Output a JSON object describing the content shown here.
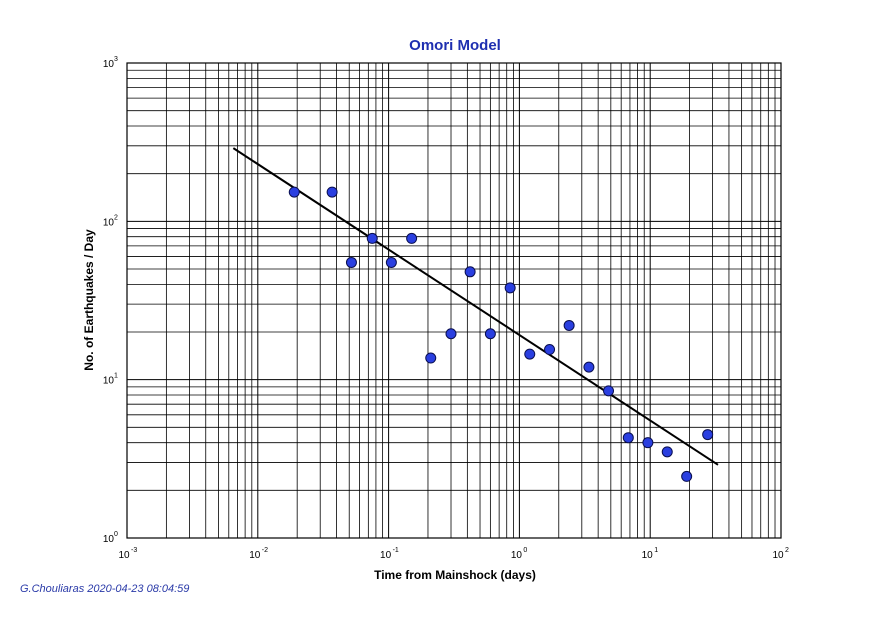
{
  "chart_data": {
    "type": "scatter",
    "title": "Omori Model",
    "xlabel": "Time from Mainshock (days)",
    "ylabel": "No. of Earthquakes / Day",
    "xscale": "log",
    "yscale": "log",
    "xlim": [
      0.001,
      100
    ],
    "ylim": [
      1,
      1000
    ],
    "x_ticks": [
      {
        "base": "10",
        "exp": "-3",
        "value": 0.001
      },
      {
        "base": "10",
        "exp": "-2",
        "value": 0.01
      },
      {
        "base": "10",
        "exp": "-1",
        "value": 0.1
      },
      {
        "base": "10",
        "exp": "0",
        "value": 1
      },
      {
        "base": "10",
        "exp": "1",
        "value": 10
      },
      {
        "base": "10",
        "exp": "2",
        "value": 100
      }
    ],
    "y_ticks": [
      {
        "base": "10",
        "exp": "0",
        "value": 1
      },
      {
        "base": "10",
        "exp": "1",
        "value": 10
      },
      {
        "base": "10",
        "exp": "2",
        "value": 100
      },
      {
        "base": "10",
        "exp": "3",
        "value": 1000
      }
    ],
    "grid": true,
    "points": {
      "x": [
        0.019,
        0.037,
        0.052,
        0.075,
        0.105,
        0.15,
        0.21,
        0.3,
        0.42,
        0.6,
        0.85,
        1.2,
        1.7,
        2.4,
        3.4,
        4.8,
        6.8,
        9.6,
        13.5,
        19,
        27.5
      ],
      "y": [
        153,
        153,
        55,
        78,
        55,
        78,
        13.7,
        19.5,
        48,
        19.5,
        38,
        14.5,
        15.5,
        22,
        12,
        8.5,
        4.3,
        4.0,
        3.5,
        2.45,
        4.5
      ]
    },
    "fit_line": {
      "x": [
        0.0065,
        33
      ],
      "y": [
        290,
        2.9
      ]
    },
    "colors": {
      "title": "#1e2fb0",
      "points": "#2a3fe0",
      "fit": "#000000"
    }
  },
  "credit": "G.Chouliaras 2020-04-23 08:04:59"
}
